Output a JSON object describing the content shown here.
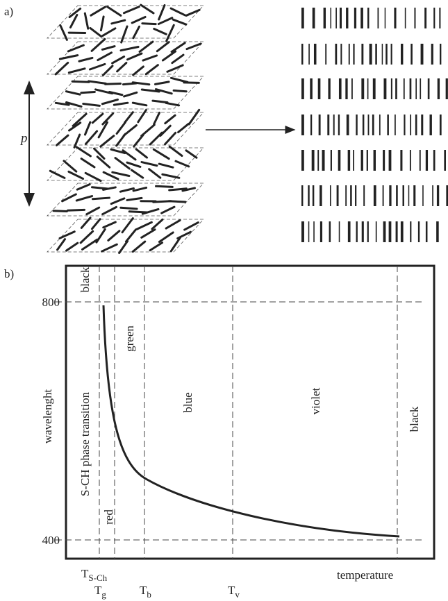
{
  "panel_a": {
    "label": "a)",
    "pitch_label": "p"
  },
  "panel_b": {
    "label": "b)",
    "y_labels": [
      "800",
      "400"
    ],
    "y_title": "wavelenght",
    "regions": [
      "black",
      "S-CH phase transition",
      "red",
      "green",
      "blue",
      "violet",
      "black"
    ],
    "x_labels": [
      {
        "base": "T",
        "sub": "S-Ch"
      },
      {
        "base": "T",
        "sub": "g"
      },
      {
        "base": "T",
        "sub": "b"
      },
      {
        "base": "T",
        "sub": "v"
      }
    ],
    "x_title": "temperature"
  }
}
